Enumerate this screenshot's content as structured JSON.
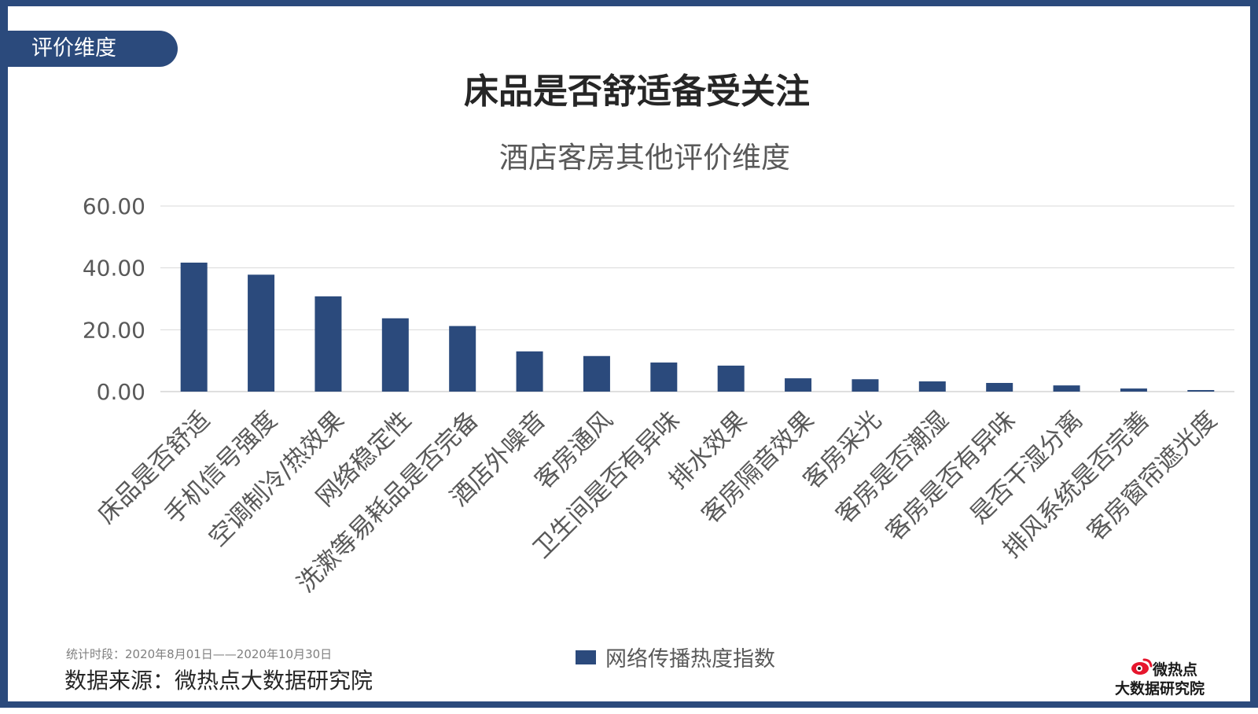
{
  "section_tab": "评价维度",
  "page_title": "床品是否舒适备受关注",
  "chart_data": {
    "type": "bar",
    "title": "酒店客房其他评价维度",
    "categories": [
      "床品是否舒适",
      "手机信号强度",
      "空调制冷/热效果",
      "网络稳定性",
      "洗漱等易耗品是否完备",
      "酒店外噪音",
      "客房通风",
      "卫生间是否有异味",
      "排水效果",
      "客房隔音效果",
      "客房采光",
      "客房是否潮湿",
      "客房是否有异味",
      "是否干湿分离",
      "排风系统是否完善",
      "客房窗帘遮光度"
    ],
    "series": [
      {
        "name": "网络传播热度指数",
        "values": [
          41.7,
          37.8,
          30.8,
          23.7,
          21.2,
          13.0,
          11.5,
          9.4,
          8.4,
          4.3,
          4.0,
          3.3,
          2.8,
          2.0,
          1.0,
          0.5
        ]
      }
    ],
    "yticks": [
      "60.00",
      "40.00",
      "20.00",
      "0.00"
    ],
    "ylim": [
      0,
      60
    ],
    "grid": true,
    "legend_position": "bottom",
    "bar_color": "#2B4A7C"
  },
  "footer": {
    "stat_period": "统计时段：2020年8月01日——2020年10月30日",
    "source": "数据来源：微热点大数据研究院"
  },
  "logo": {
    "line1": "微热点",
    "line2": "大数据研究院",
    "icon": "weibo-eye-icon"
  }
}
